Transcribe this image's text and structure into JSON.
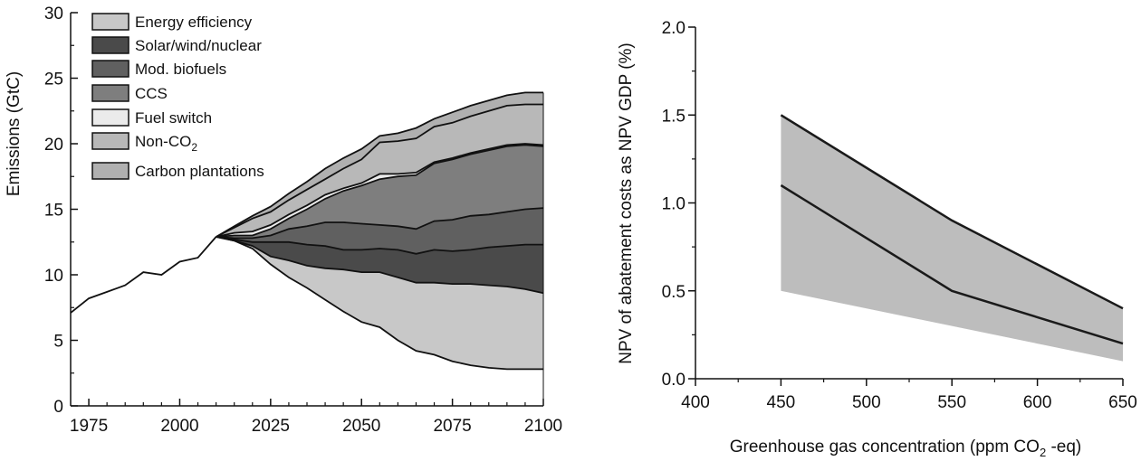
{
  "chart_data": [
    {
      "type": "area",
      "title": "",
      "xlabel": "",
      "ylabel": "Emissions (GtC)",
      "xlim": [
        1970,
        2100
      ],
      "ylim": [
        0,
        30
      ],
      "xticks": [
        "1975",
        "2000",
        "2025",
        "2050",
        "2075",
        "2100"
      ],
      "yticks": [
        "0",
        "5",
        "10",
        "15",
        "20",
        "25",
        "30"
      ],
      "legend_position": "top-left",
      "historical": {
        "x": [
          1970,
          1975,
          1980,
          1985,
          1990,
          1995,
          2000,
          2005,
          2010
        ],
        "values": [
          7.1,
          8.2,
          8.7,
          9.2,
          10.2,
          10.0,
          11.0,
          11.3,
          12.9
        ]
      },
      "x": [
        2010,
        2015,
        2020,
        2025,
        2030,
        2035,
        2040,
        2045,
        2050,
        2055,
        2060,
        2065,
        2070,
        2075,
        2080,
        2085,
        2090,
        2095,
        2100
      ],
      "boundaries": [
        [
          12.9,
          12.6,
          12.0,
          10.8,
          9.8,
          9.0,
          8.1,
          7.2,
          6.4,
          6.0,
          5.0,
          4.2,
          3.9,
          3.4,
          3.1,
          2.9,
          2.8,
          2.8,
          2.8
        ],
        [
          12.9,
          12.6,
          12.2,
          11.4,
          11.1,
          10.7,
          10.5,
          10.4,
          10.2,
          10.2,
          9.8,
          9.4,
          9.4,
          9.3,
          9.3,
          9.2,
          9.1,
          8.9,
          8.6
        ],
        [
          12.9,
          12.7,
          12.5,
          12.5,
          12.5,
          12.3,
          12.2,
          11.9,
          11.9,
          12.0,
          11.9,
          11.6,
          11.9,
          11.8,
          11.9,
          12.1,
          12.2,
          12.3,
          12.3
        ],
        [
          12.9,
          12.8,
          12.8,
          13.0,
          13.5,
          13.7,
          14.0,
          14.0,
          13.9,
          13.8,
          13.7,
          13.5,
          14.1,
          14.2,
          14.5,
          14.6,
          14.8,
          15.0,
          15.1
        ],
        [
          12.9,
          13.0,
          13.0,
          13.5,
          14.3,
          15.0,
          15.8,
          16.4,
          16.8,
          17.3,
          17.5,
          17.6,
          18.5,
          18.8,
          19.2,
          19.5,
          19.8,
          19.9,
          19.8
        ],
        [
          12.9,
          13.2,
          13.3,
          13.8,
          14.6,
          15.3,
          16.1,
          16.6,
          17.0,
          17.7,
          17.7,
          17.8,
          18.6,
          18.9,
          19.3,
          19.6,
          19.9,
          20.0,
          19.9
        ],
        [
          12.9,
          13.6,
          14.3,
          14.8,
          15.7,
          16.5,
          17.3,
          18.1,
          18.8,
          20.1,
          20.2,
          20.4,
          21.3,
          21.6,
          22.1,
          22.5,
          22.9,
          23.0,
          23.0
        ],
        [
          12.9,
          13.7,
          14.5,
          15.2,
          16.2,
          17.1,
          18.1,
          18.9,
          19.6,
          20.6,
          20.8,
          21.2,
          21.9,
          22.4,
          22.9,
          23.3,
          23.7,
          23.9,
          23.9
        ]
      ],
      "series": [
        {
          "name": "Energy efficiency",
          "color": "#c8c8c8"
        },
        {
          "name": "Solar/wind/nuclear",
          "color": "#4a4a4a"
        },
        {
          "name": "Mod. biofuels",
          "color": "#606060"
        },
        {
          "name": "CCS",
          "color": "#7e7e7e"
        },
        {
          "name": "Fuel switch",
          "color": "#ebebeb"
        },
        {
          "name": "Non-CO",
          "name_sub": "2",
          "color": "#b8b8b8"
        },
        {
          "name": "Carbon plantations",
          "color": "#b0b0b0"
        }
      ]
    },
    {
      "type": "area",
      "title": "",
      "xlabel_parts": [
        "Greenhouse gas concentration (ppm CO",
        "2",
        " -eq)"
      ],
      "ylabel": "NPV of abatement costs as NPV GDP (%)",
      "xlim": [
        400,
        650
      ],
      "ylim": [
        0,
        2
      ],
      "xticks": [
        "400",
        "450",
        "500",
        "550",
        "600",
        "650"
      ],
      "yticks": [
        "0.0",
        "0.5",
        "1.0",
        "1.5",
        "2.0"
      ],
      "x": [
        450,
        550,
        650
      ],
      "upper": [
        1.5,
        0.9,
        0.4
      ],
      "lower": [
        0.5,
        0.3,
        0.1
      ],
      "central": [
        1.1,
        0.5,
        0.2
      ],
      "band_color": "#bdbdbd",
      "line_color": "#1a1a1a"
    }
  ]
}
